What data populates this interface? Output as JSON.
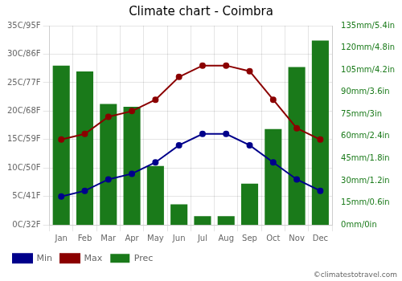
{
  "chart_data": {
    "type": "bar",
    "title": "Climate chart - Coimbra",
    "categories": [
      "Jan",
      "Feb",
      "Mar",
      "Apr",
      "May",
      "Jun",
      "Jul",
      "Aug",
      "Sep",
      "Oct",
      "Nov",
      "Dec"
    ],
    "series": [
      {
        "name": "Prec",
        "type": "bar",
        "axis": "y2",
        "color": "#1a7a1a",
        "values": [
          108,
          104,
          82,
          80,
          40,
          14,
          6,
          6,
          28,
          65,
          107,
          125
        ]
      },
      {
        "name": "Min",
        "type": "line",
        "color": "#00008B",
        "marker": "circle",
        "line_style": "solid",
        "values": [
          5,
          6,
          8,
          9,
          11,
          14,
          16,
          16,
          14,
          11,
          8,
          6
        ]
      },
      {
        "name": "Max",
        "type": "line",
        "color": "#8B0000",
        "marker": "circle",
        "line_style": "solid",
        "values": [
          15,
          16,
          19,
          20,
          22,
          26,
          28,
          28,
          27,
          22,
          17,
          15
        ]
      }
    ],
    "ylim": [
      0,
      35
    ],
    "yticks": [
      {
        "value": 0,
        "label": "0C/32F"
      },
      {
        "value": 5,
        "label": "5C/41F"
      },
      {
        "value": 10,
        "label": "10C/50F"
      },
      {
        "value": 15,
        "label": "15C/59F"
      },
      {
        "value": 20,
        "label": "20C/68F"
      },
      {
        "value": 25,
        "label": "25C/77F"
      },
      {
        "value": 30,
        "label": "30C/86F"
      },
      {
        "value": 35,
        "label": "35C/95F"
      }
    ],
    "y2lim": [
      0,
      135
    ],
    "y2ticks": [
      {
        "value": 0,
        "label": "0mm/0in"
      },
      {
        "value": 15,
        "label": "15mm/0.6in"
      },
      {
        "value": 30,
        "label": "30mm/1.2in"
      },
      {
        "value": 45,
        "label": "45mm/1.8in"
      },
      {
        "value": 60,
        "label": "60mm/2.4in"
      },
      {
        "value": 75,
        "label": "75mm/3in"
      },
      {
        "value": 90,
        "label": "90mm/3.6in"
      },
      {
        "value": 105,
        "label": "105mm/4.2in"
      },
      {
        "value": 120,
        "label": "120mm/4.8in"
      },
      {
        "value": 135,
        "label": "135mm/5.4in"
      }
    ],
    "grid": true,
    "legend": "bottom",
    "annotations": [
      "©climatestotravel.com"
    ]
  }
}
